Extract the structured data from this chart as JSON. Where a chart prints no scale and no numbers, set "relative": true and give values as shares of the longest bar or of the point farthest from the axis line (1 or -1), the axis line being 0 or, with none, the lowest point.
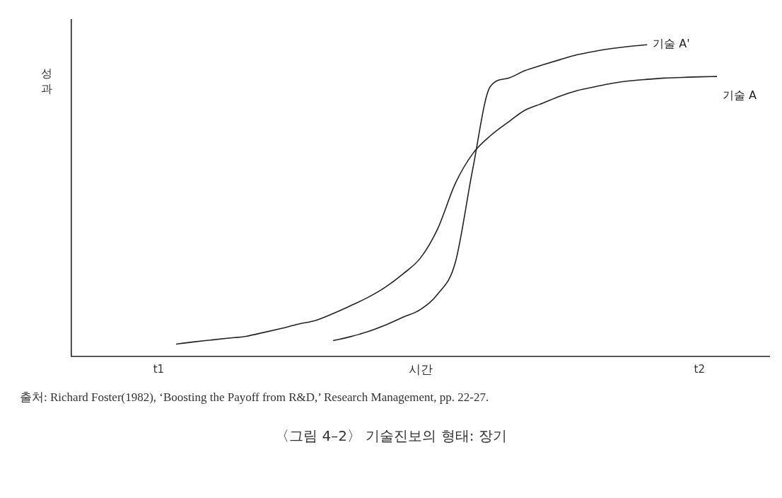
{
  "chart_data": {
    "type": "line",
    "relative": true,
    "title": "〈그림 4–2〉 기술진보의 형태: 장기",
    "xlabel": "시간",
    "ylabel": "성과",
    "annotations": [
      "출처: Richard Foster(1982), ‘Boosting the Payoff from R&D,’ Research Management, pp. 22-27."
    ],
    "categories": [
      null,
      null,
      null,
      null,
      null,
      "t1",
      null,
      null,
      null,
      null,
      null,
      null,
      null,
      null,
      null,
      null,
      null,
      null,
      null,
      null,
      null,
      null,
      null,
      null,
      null,
      null,
      null,
      null,
      null,
      null,
      null,
      null,
      null,
      null,
      null,
      null,
      "t2",
      null,
      null,
      null,
      null
    ],
    "grid": false,
    "legend": false,
    "marker": "none",
    "line_style": "solid",
    "series": [
      {
        "name": "기술 A'",
        "color": "#222222",
        "values": [
          null,
          null,
          null,
          null,
          null,
          null,
          null,
          null,
          null,
          null,
          null,
          null,
          null,
          null,
          null,
          0.05,
          0.063,
          0.079,
          0.1,
          0.125,
          0.15,
          0.2,
          0.3,
          0.6,
          0.865,
          0.892,
          0.917,
          0.935,
          0.952,
          0.968,
          0.979,
          0.988,
          0.995,
          1,
          null,
          null,
          null,
          null,
          null,
          null,
          null
        ]
      },
      {
        "name": "기술 A",
        "color": "#222222",
        "values": [
          null,
          null,
          null,
          null,
          null,
          null,
          0.039,
          0.046,
          0.052,
          0.058,
          0.064,
          0.076,
          0.089,
          0.103,
          0.115,
          0.137,
          0.162,
          0.189,
          0.222,
          0.264,
          0.315,
          0.41,
          0.554,
          0.65,
          0.707,
          0.75,
          0.79,
          0.812,
          0.835,
          0.853,
          0.865,
          0.876,
          0.884,
          0.889,
          0.893,
          0.895,
          0.897,
          0.898,
          null,
          null,
          null
        ]
      }
    ]
  }
}
